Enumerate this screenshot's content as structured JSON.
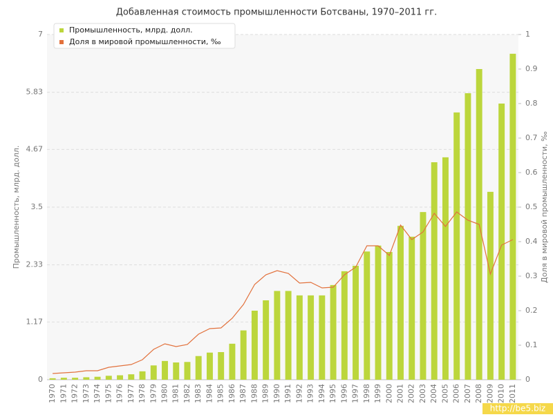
{
  "chart_data": {
    "type": "bar",
    "title": "Добавленная стоимость промышленности Ботсваны, 1970–2011 гг.",
    "y_label": "Промышленность, млрд. долл.",
    "y2_label": "Доля в мировой промышленности, ‰",
    "watermark": "http://be5.biz",
    "categories": [
      "1970",
      "1971",
      "1972",
      "1973",
      "1974",
      "1975",
      "1976",
      "1977",
      "1978",
      "1979",
      "1980",
      "1981",
      "1982",
      "1983",
      "1984",
      "1985",
      "1986",
      "1987",
      "1988",
      "1989",
      "1990",
      "1991",
      "1992",
      "1993",
      "1994",
      "1995",
      "1996",
      "1997",
      "1998",
      "1999",
      "2000",
      "2001",
      "2002",
      "2003",
      "2004",
      "2005",
      "2006",
      "2007",
      "2008",
      "2009",
      "2010",
      "2011"
    ],
    "series": [
      {
        "name": "Промышленность, млрд. долл.",
        "type": "bar",
        "color": "#bcd63c",
        "axis": "y",
        "values": [
          0.03,
          0.04,
          0.04,
          0.05,
          0.06,
          0.08,
          0.09,
          0.11,
          0.17,
          0.29,
          0.38,
          0.35,
          0.36,
          0.48,
          0.55,
          0.56,
          0.73,
          1.0,
          1.4,
          1.61,
          1.8,
          1.8,
          1.71,
          1.71,
          1.71,
          1.92,
          2.2,
          2.31,
          2.6,
          2.72,
          2.59,
          3.12,
          2.9,
          3.4,
          4.41,
          4.51,
          5.42,
          5.81,
          6.3,
          3.81,
          5.6,
          6.61
        ]
      },
      {
        "name": "Доля в мировой промышленности, ‰",
        "type": "line",
        "color": "#e2713c",
        "axis": "y2",
        "values": [
          0.018,
          0.02,
          0.022,
          0.026,
          0.026,
          0.036,
          0.04,
          0.044,
          0.058,
          0.088,
          0.104,
          0.096,
          0.102,
          0.132,
          0.148,
          0.15,
          0.178,
          0.218,
          0.276,
          0.304,
          0.316,
          0.308,
          0.28,
          0.282,
          0.266,
          0.268,
          0.304,
          0.326,
          0.388,
          0.388,
          0.36,
          0.448,
          0.406,
          0.428,
          0.482,
          0.444,
          0.486,
          0.462,
          0.45,
          0.306,
          0.39,
          0.406
        ]
      }
    ],
    "ylim": [
      0,
      7
    ],
    "yticks": [
      0,
      1.17,
      2.33,
      3.5,
      4.67,
      5.83,
      7
    ],
    "y2lim": [
      0,
      1
    ],
    "y2ticks": [
      0,
      0.1,
      0.2,
      0.3,
      0.4,
      0.5,
      0.6,
      0.7,
      0.8,
      0.9,
      1
    ],
    "grid": true,
    "legend": "top-left"
  }
}
